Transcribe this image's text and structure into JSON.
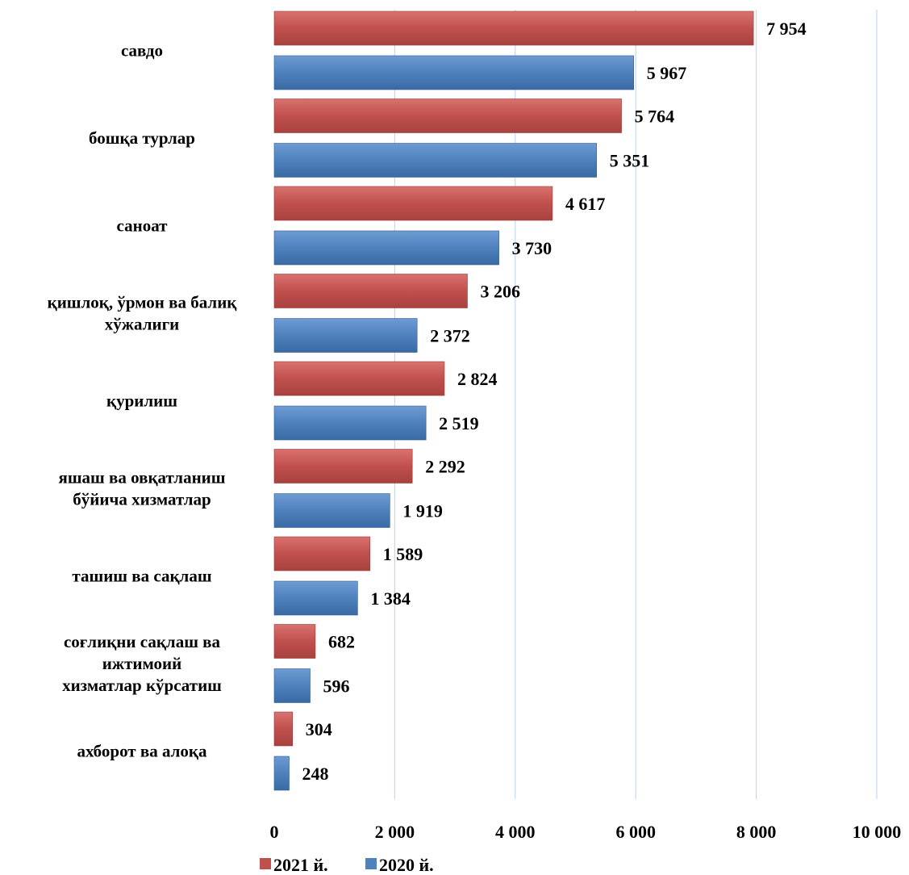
{
  "chart_data": {
    "type": "bar",
    "orientation": "horizontal",
    "categories": [
      "савдо",
      "бошқа турлар",
      "саноат",
      "қишлоқ, ўрмон ва балиқ хўжалиги",
      "қурилиш",
      "яшаш ва овқатланиш бўйича хизматлар",
      "ташиш ва сақлаш",
      "соғлиқни сақлаш ва ижтимоий хизматлар кўрсатиш",
      "ахборот ва алоқа"
    ],
    "category_lines": [
      [
        "савдо"
      ],
      [
        "бошқа турлар"
      ],
      [
        "саноат"
      ],
      [
        "қишлоқ, ўрмон ва балиқ",
        "хўжалиги"
      ],
      [
        "қурилиш"
      ],
      [
        "яшаш ва овқатланиш",
        "бўйича хизматлар"
      ],
      [
        "ташиш ва сақлаш"
      ],
      [
        "соғлиқни сақлаш ва",
        "ижтимоий",
        "хизматлар кўрсатиш"
      ],
      [
        "ахборот ва алоқа"
      ]
    ],
    "series": [
      {
        "name": "2021 й.",
        "color": "#C0504D",
        "values": [
          7954,
          5764,
          4617,
          3206,
          2824,
          2292,
          1589,
          682,
          304
        ],
        "labels": [
          "7 954",
          "5 764",
          "4 617",
          "3 206",
          "2 824",
          "2 292",
          "1 589",
          "682",
          "304"
        ]
      },
      {
        "name": "2020 й.",
        "color": "#4F81BD",
        "values": [
          5967,
          5351,
          3730,
          2372,
          2519,
          1919,
          1384,
          596,
          248
        ],
        "labels": [
          "5 967",
          "5 351",
          "3 730",
          "2 372",
          "2 519",
          "1 919",
          "1 384",
          "596",
          "248"
        ]
      }
    ],
    "xlim": [
      0,
      10000
    ],
    "xticks": [
      0,
      2000,
      4000,
      6000,
      8000,
      10000
    ],
    "xtick_labels": [
      "0",
      "2 000",
      "4 000",
      "6 000",
      "8 000",
      "10 000"
    ],
    "grid": "vertical",
    "gridline_color": "#C6D9F1",
    "legend_position": "bottom-left",
    "title": "",
    "xlabel": "",
    "ylabel": ""
  }
}
